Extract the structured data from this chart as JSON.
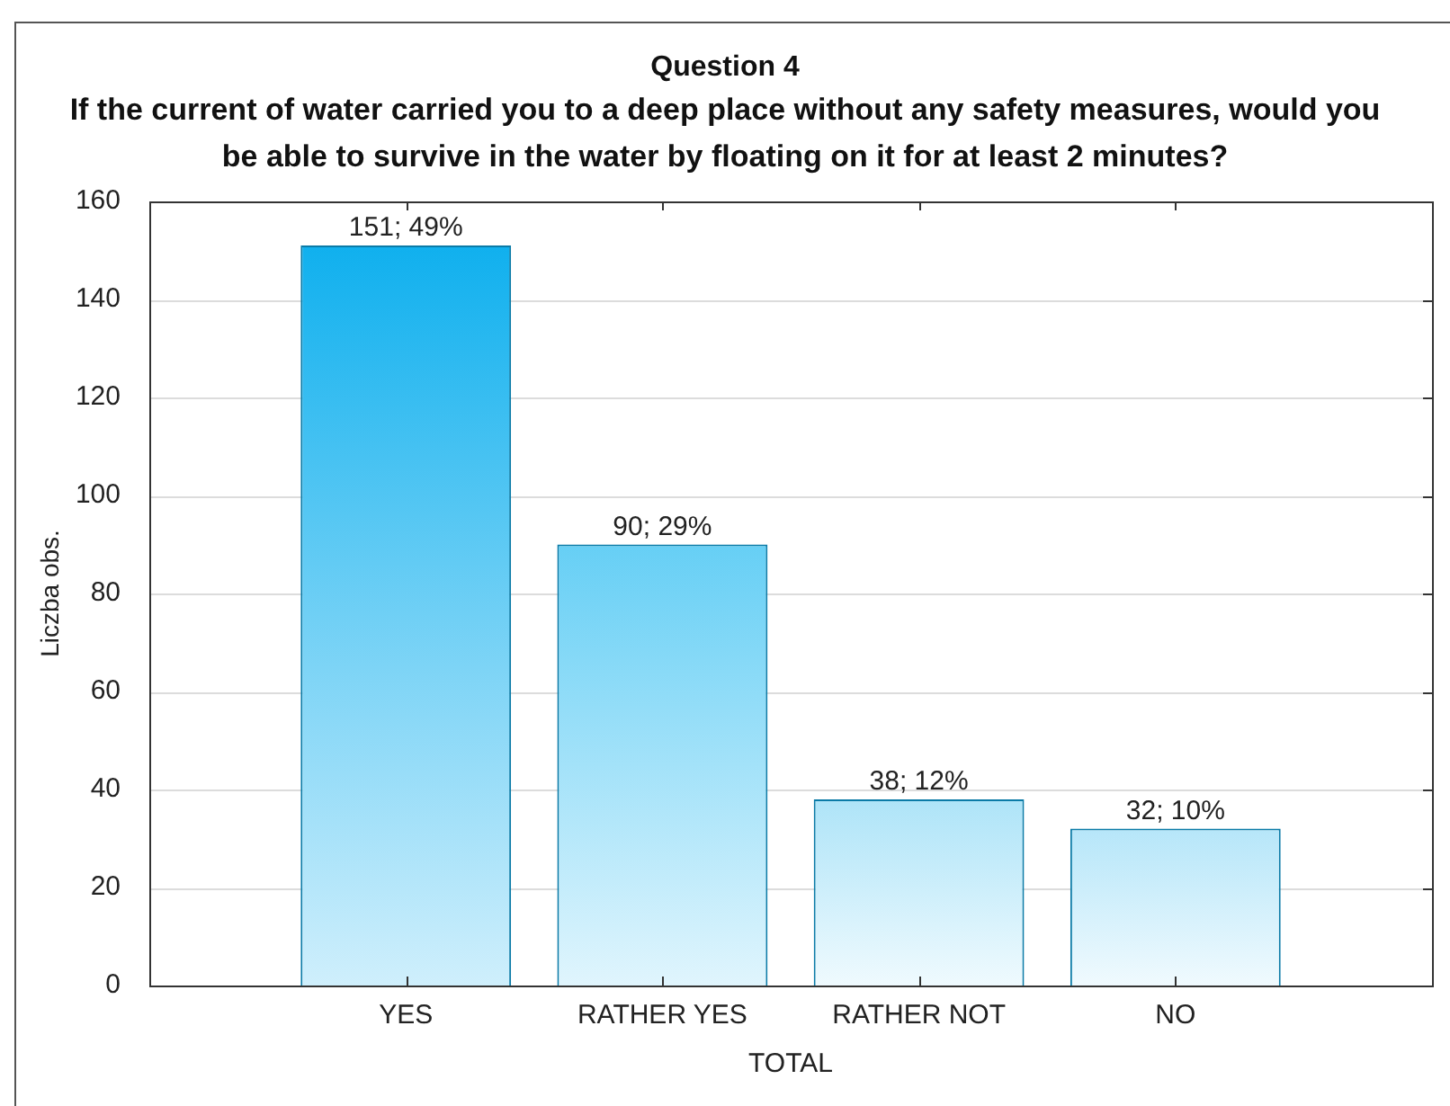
{
  "chart_data": {
    "type": "bar",
    "title": "Question 4",
    "subtitle": "If the current of water carried you to a deep place without any safety measures, would you be able to survive in the water by floating on it for at least 2 minutes?",
    "xlabel": "TOTAL",
    "ylabel": "Liczba obs.",
    "categories": [
      "YES",
      "RATHER YES",
      "RATHER NOT",
      "NO"
    ],
    "values": [
      151,
      90,
      38,
      32
    ],
    "value_labels": [
      "151; 49%",
      "90; 29%",
      "38; 12%",
      "32; 10%"
    ],
    "colors": [
      "#10b0ee",
      "#66cff5",
      "#aee4f8",
      "#b6e6f9"
    ],
    "ylim": [
      0,
      160
    ],
    "yticks": [
      0,
      20,
      40,
      60,
      80,
      100,
      120,
      140,
      160
    ],
    "grid": "y",
    "legend": false
  }
}
